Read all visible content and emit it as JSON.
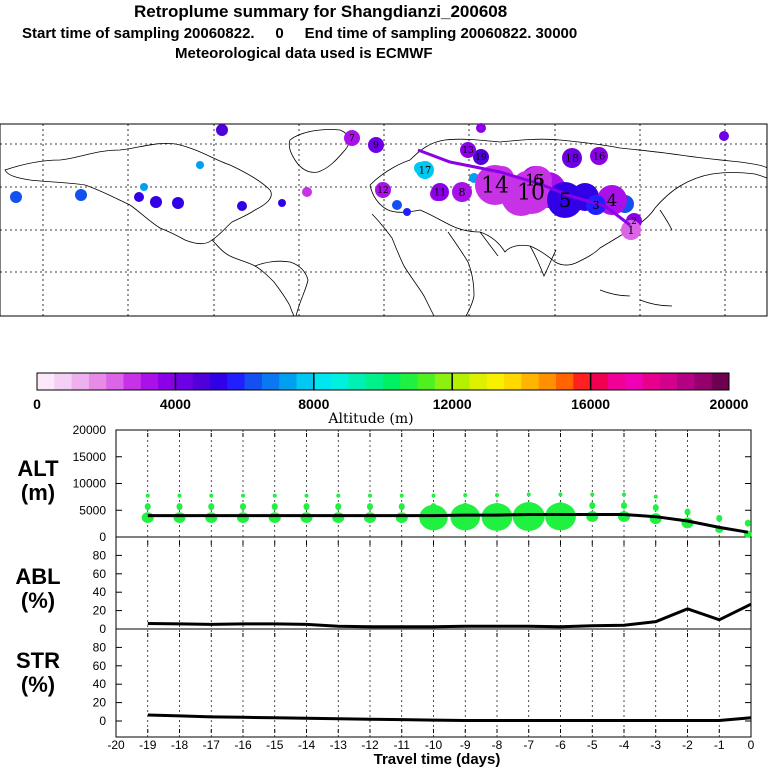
{
  "header": {
    "title": "Retroplume summary for Shangdianzi_200608",
    "sampling": "Start time of sampling 20060822.     0     End time of sampling 20060822. 30000",
    "meteo": "Meteorological data used is ECMWF"
  },
  "colorbar": {
    "title": "Altitude (m)",
    "tick_labels": [
      "0",
      "4000",
      "8000",
      "12000",
      "16000",
      "20000"
    ],
    "colors": [
      "#fbe8fb",
      "#f5d0f5",
      "#eeb0ee",
      "#e68ce8",
      "#dc64e6",
      "#c832e6",
      "#aa10e8",
      "#8c00e8",
      "#6e00e6",
      "#5000d8",
      "#3200e6",
      "#2020ff",
      "#1450f0",
      "#0a78f0",
      "#00a0f0",
      "#00c8f0",
      "#00e6f0",
      "#00f0e0",
      "#00f0b4",
      "#00f08c",
      "#00f064",
      "#20f040",
      "#50f020",
      "#8cf010",
      "#b4f000",
      "#dcf000",
      "#f8f000",
      "#ffd800",
      "#ffb400",
      "#ff9000",
      "#ff6400",
      "#ff2020",
      "#f00050",
      "#f00096",
      "#f000b4",
      "#e6008c",
      "#d2008c",
      "#b40082",
      "#96006e",
      "#6e0050"
    ]
  },
  "map": {
    "labels": [
      {
        "text": "19",
        "color": "#5000d8"
      },
      {
        "text": "18",
        "color": "#6e00e6"
      },
      {
        "text": "17",
        "color": "#00c8f0"
      },
      {
        "text": "16",
        "color": "#8c00e8"
      },
      {
        "text": "15",
        "color": "#aa10e8"
      },
      {
        "text": "14",
        "color": "#c832e6"
      },
      {
        "text": "13",
        "color": "#8c00e8"
      },
      {
        "text": "12",
        "color": "#aa10e8"
      },
      {
        "text": "11",
        "color": "#8c00e8"
      },
      {
        "text": "10",
        "color": "#c832e6"
      },
      {
        "text": "9",
        "color": "#6e00e6"
      },
      {
        "text": "8",
        "color": "#aa10e8"
      },
      {
        "text": "7",
        "color": "#aa10e8"
      },
      {
        "text": "6",
        "color": "#c832e6"
      },
      {
        "text": "5",
        "color": "#3200e6"
      },
      {
        "text": "4",
        "color": "#aa10e8"
      },
      {
        "text": "3",
        "color": "#2020ff"
      },
      {
        "text": "2",
        "color": "#8c00e8"
      },
      {
        "text": "1",
        "color": "#dc64e6"
      }
    ]
  },
  "panels": {
    "alt": {
      "label": "ALT",
      "unit": "(m)"
    },
    "abl": {
      "label": "ABL",
      "unit": "(%)"
    },
    "str": {
      "label": "STR",
      "unit": "(%)"
    }
  },
  "xaxis": {
    "title": "Travel time (days)",
    "tick_labels": [
      "-20",
      "-19",
      "-18",
      "-17",
      "-16",
      "-15",
      "-14",
      "-13",
      "-12",
      "-11",
      "-10",
      "-9",
      "-8",
      "-7",
      "-6",
      "-5",
      "-4",
      "-3",
      "-2",
      "-1",
      "0"
    ]
  },
  "chart_data": [
    {
      "type": "line",
      "title": "ALT",
      "xlabel": "Travel time (days)",
      "ylabel": "(m)",
      "xlim": [
        -20,
        0
      ],
      "ylim": [
        0,
        20000
      ],
      "yticks": [
        "0",
        "5000",
        "10000",
        "15000",
        "20000"
      ],
      "x": [
        -19,
        -18,
        -17,
        -16,
        -15,
        -14,
        -13,
        -12,
        -11,
        -10,
        -9,
        -8,
        -7,
        -6,
        -5,
        -4,
        -3,
        -2,
        -1,
        -0.1
      ],
      "values": [
        4000,
        4000,
        4000,
        4000,
        4000,
        4000,
        4000,
        4000,
        4000,
        4000,
        4100,
        4100,
        4200,
        4200,
        4200,
        4200,
        3800,
        3000,
        1800,
        900
      ],
      "scatter_color": "#20f040"
    },
    {
      "type": "line",
      "title": "ABL",
      "ylabel": "(%)",
      "xlim": [
        -20,
        0
      ],
      "ylim": [
        0,
        100
      ],
      "yticks": [
        "0",
        "20",
        "40",
        "60",
        "80"
      ],
      "x": [
        -19,
        -18,
        -17,
        -16,
        -15,
        -14,
        -13,
        -12,
        -11,
        -10,
        -9,
        -8,
        -7,
        -6,
        -5,
        -4,
        -3,
        -2,
        -1,
        0
      ],
      "values": [
        6,
        5.5,
        5,
        5.5,
        5.5,
        5,
        3,
        2.5,
        2.5,
        2.5,
        3,
        3,
        3,
        2.5,
        3.5,
        4,
        8,
        22,
        10,
        27
      ]
    },
    {
      "type": "line",
      "title": "STR",
      "ylabel": "(%)",
      "xlim": [
        -20,
        0
      ],
      "ylim": [
        0,
        100
      ],
      "yticks": [
        "0",
        "20",
        "40",
        "60",
        "80"
      ],
      "x": [
        -19,
        -18,
        -17,
        -16,
        -15,
        -14,
        -13,
        -12,
        -11,
        -10,
        -9,
        -8,
        -7,
        -6,
        -5,
        -4,
        -3,
        -2,
        -1,
        0
      ],
      "values": [
        6.5,
        5.5,
        4.5,
        4,
        3.5,
        3,
        2.5,
        2,
        1.5,
        1,
        0.5,
        0.5,
        0.5,
        0.5,
        0.5,
        0.5,
        0.5,
        0.5,
        0.5,
        3.5
      ]
    }
  ]
}
